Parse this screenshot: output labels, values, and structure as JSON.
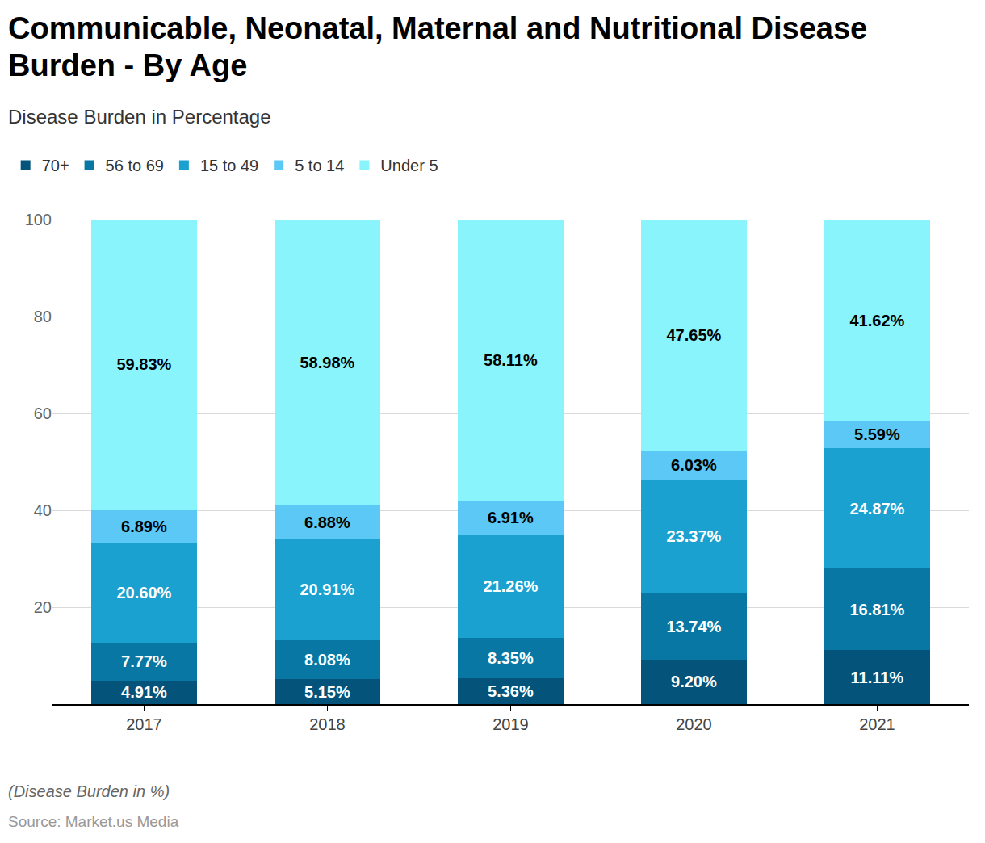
{
  "chart_data": {
    "type": "bar",
    "title": "Communicable, Neonatal, Maternal and Nutritional Disease Burden - By Age",
    "subtitle": "Disease Burden in Percentage",
    "annotations": [
      "(Disease Burden in %)",
      "Source: Market.us Media"
    ],
    "categories": [
      "2017",
      "2018",
      "2019",
      "2020",
      "2021"
    ],
    "series": [
      {
        "name": "70+",
        "color": "#03537a",
        "values": [
          4.91,
          5.15,
          5.36,
          9.2,
          11.11
        ],
        "value_labels": [
          "4.91%",
          "5.15%",
          "5.36%",
          "9.20%",
          "11.11%"
        ]
      },
      {
        "name": "56 to 69",
        "color": "#0877a3",
        "values": [
          7.77,
          8.08,
          8.35,
          13.74,
          16.81
        ],
        "value_labels": [
          "7.77%",
          "8.08%",
          "8.35%",
          "13.74%",
          "16.81%"
        ]
      },
      {
        "name": "15 to 49",
        "color": "#1ba1cf",
        "values": [
          20.6,
          20.91,
          21.26,
          23.37,
          24.87
        ],
        "value_labels": [
          "20.60%",
          "20.91%",
          "21.26%",
          "23.37%",
          "24.87%"
        ]
      },
      {
        "name": "5 to 14",
        "color": "#5cc8f5",
        "values": [
          6.89,
          6.88,
          6.91,
          6.03,
          5.59
        ],
        "value_labels": [
          "6.89%",
          "6.88%",
          "6.91%",
          "6.03%",
          "5.59%"
        ]
      },
      {
        "name": "Under 5",
        "color": "#8af4fd",
        "values": [
          59.83,
          58.98,
          58.11,
          47.65,
          41.62
        ],
        "value_labels": [
          "59.83%",
          "58.98%",
          "58.11%",
          "47.65%",
          "41.62%"
        ]
      }
    ],
    "ylim": [
      0,
      100
    ],
    "yticks": [
      20,
      40,
      60,
      80,
      100
    ],
    "grid": true,
    "stacked": true,
    "legend": "top left",
    "data_labels": true
  }
}
